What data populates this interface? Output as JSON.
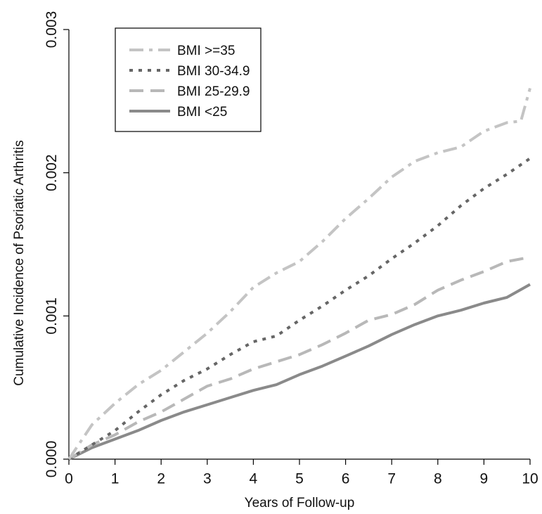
{
  "chart_data": {
    "type": "line",
    "title": "",
    "xlabel": "Years of Follow-up",
    "ylabel": "Cumulative Incidence of Psoriatic Arthritis",
    "xlim": [
      0,
      10
    ],
    "ylim": [
      0,
      0.003
    ],
    "x_ticks": [
      0,
      1,
      2,
      3,
      4,
      5,
      6,
      7,
      8,
      9,
      10
    ],
    "x_tick_labels": [
      "0",
      "1",
      "2",
      "3",
      "4",
      "5",
      "6",
      "7",
      "8",
      "9",
      "10"
    ],
    "y_ticks": [
      0,
      0.001,
      0.002,
      0.003
    ],
    "y_tick_labels": [
      "0.000",
      "0.001",
      "0.002",
      "0.003"
    ],
    "grid": false,
    "legend_position": "top-left",
    "series": [
      {
        "name": "BMI >=35",
        "color": "#c4c4c4",
        "dash": "dash-dot",
        "x": [
          0,
          0.5,
          1,
          1.5,
          2,
          2.5,
          3,
          3.5,
          4,
          4.5,
          5,
          5.5,
          6,
          6.5,
          7,
          7.5,
          8,
          8.5,
          9,
          9.5,
          9.8,
          10
        ],
        "y": [
          0,
          0.00024,
          0.00039,
          0.00052,
          0.00062,
          0.00075,
          0.00088,
          0.00103,
          0.0012,
          0.0013,
          0.00138,
          0.00152,
          0.00168,
          0.00182,
          0.00197,
          0.00208,
          0.00214,
          0.00218,
          0.00229,
          0.00235,
          0.00236,
          0.00259
        ]
      },
      {
        "name": "BMI 30-34.9",
        "color": "#666666",
        "dash": "dotted",
        "x": [
          0,
          0.5,
          1,
          1.5,
          2,
          2.5,
          3,
          3.5,
          4,
          4.5,
          5,
          5.5,
          6,
          6.5,
          7,
          7.5,
          8,
          8.5,
          9,
          9.5,
          10
        ],
        "y": [
          0,
          0.0001,
          0.0002,
          0.00033,
          0.00045,
          0.00055,
          0.00063,
          0.00073,
          0.00082,
          0.00086,
          0.00097,
          0.00107,
          0.00118,
          0.00128,
          0.0014,
          0.00151,
          0.00163,
          0.00177,
          0.00189,
          0.00199,
          0.0021
        ]
      },
      {
        "name": "BMI 25-29.9",
        "color": "#b8b8b8",
        "dash": "dashed",
        "x": [
          0,
          0.5,
          1,
          1.5,
          2,
          2.5,
          3,
          3.5,
          4,
          4.5,
          5,
          5.5,
          6,
          6.5,
          7,
          7.5,
          8,
          8.5,
          9,
          9.5,
          10
        ],
        "y": [
          0,
          0.0001,
          0.00017,
          0.00026,
          0.00033,
          0.00042,
          0.00051,
          0.00056,
          0.00063,
          0.00068,
          0.00073,
          0.0008,
          0.00088,
          0.00097,
          0.00101,
          0.00108,
          0.00118,
          0.00125,
          0.00131,
          0.00138,
          0.00141
        ]
      },
      {
        "name": "BMI <25",
        "color": "#8a8a8a",
        "dash": "solid",
        "x": [
          0,
          0.5,
          1,
          1.5,
          2,
          2.5,
          3,
          3.5,
          4,
          4.5,
          5,
          5.5,
          6,
          6.5,
          7,
          7.5,
          8,
          8.5,
          9,
          9.5,
          10
        ],
        "y": [
          0,
          8e-05,
          0.00014,
          0.0002,
          0.00027,
          0.00033,
          0.00038,
          0.00043,
          0.00048,
          0.00052,
          0.00059,
          0.00065,
          0.00072,
          0.00079,
          0.00087,
          0.00094,
          0.001,
          0.00104,
          0.00109,
          0.00113,
          0.00122
        ]
      }
    ]
  }
}
